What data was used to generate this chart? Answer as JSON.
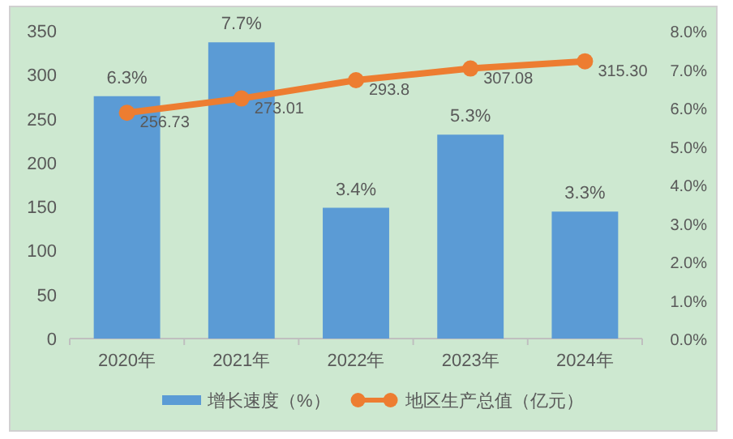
{
  "chart_data": {
    "type": "bar",
    "categories": [
      "2020年",
      "2021年",
      "2022年",
      "2023年",
      "2024年"
    ],
    "series": [
      {
        "name": "增长速度（%）",
        "axis": "y2",
        "color": "#5b9bd5",
        "values": [
          6.3,
          7.7,
          3.4,
          5.3,
          3.3
        ],
        "value_labels": [
          "6.3%",
          "7.7%",
          "3.4%",
          "5.3%",
          "3.3%"
        ]
      },
      {
        "name": "地区生产总值（亿元）",
        "type": "line",
        "axis": "y",
        "color": "#ed7d31",
        "marker": "circle",
        "values": [
          256.73,
          273.01,
          293.8,
          307.08,
          315.3
        ],
        "value_labels": [
          "256.73",
          "273.01",
          "293.8",
          "307.08",
          "315.30"
        ]
      }
    ],
    "ylim": [
      0,
      350
    ],
    "yticks": [
      0,
      50,
      100,
      150,
      200,
      250,
      300,
      350
    ],
    "y2lim": [
      0,
      8
    ],
    "y2ticks": [
      {
        "value": 0,
        "label": "0.0%"
      },
      {
        "value": 1,
        "label": "1.0%"
      },
      {
        "value": 2,
        "label": "2.0%"
      },
      {
        "value": 3,
        "label": "3.0%"
      },
      {
        "value": 4,
        "label": "4.0%"
      },
      {
        "value": 5,
        "label": "5.0%"
      },
      {
        "value": 6,
        "label": "6.0%"
      },
      {
        "value": 7,
        "label": "7.0%"
      },
      {
        "value": 8,
        "label": "8.0%"
      }
    ],
    "legend": "bottom"
  }
}
